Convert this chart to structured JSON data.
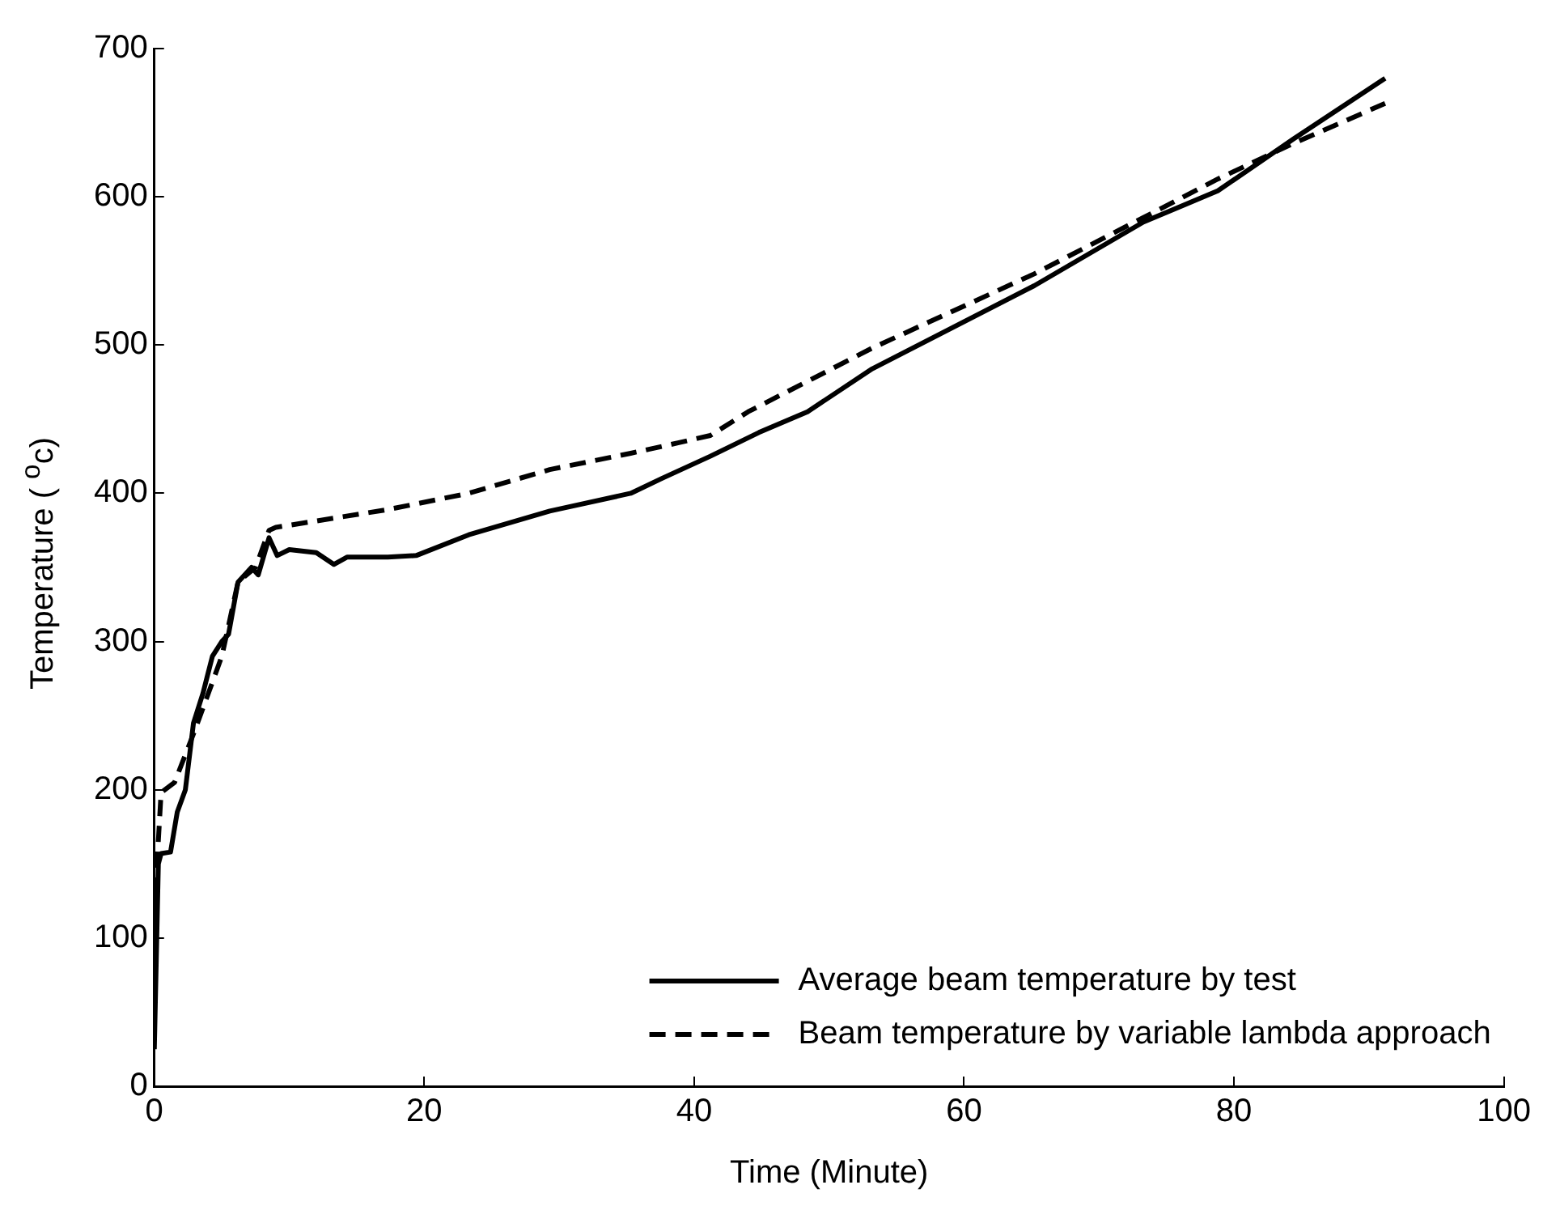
{
  "chart_data": {
    "type": "line",
    "xlabel": "Time (Minute)",
    "ylabel": "Temperature ( $^{o}$c)",
    "xlim": [
      0,
      100
    ],
    "xticks": [
      0,
      20,
      40,
      60,
      80,
      100
    ],
    "ylim": [
      0,
      700
    ],
    "yticks": [
      0,
      100,
      200,
      300,
      400,
      500,
      600,
      700
    ],
    "grid": false,
    "legend": "bottom right",
    "marker": "none",
    "series": [
      {
        "name": "Average beam temperature by test",
        "color": "#000000",
        "line_style": "solid",
        "x": [
          0,
          0.3,
          0.5,
          1.2,
          1.7,
          2.3,
          2.9,
          3.6,
          4.3,
          5,
          5.5,
          6.2,
          7.2,
          7.7,
          8.5,
          9.1,
          10,
          12,
          13.3,
          14.3,
          17.3,
          19.4,
          23.3,
          29.3,
          35.3,
          37.6,
          41.2,
          44.8,
          48.4,
          53.2,
          65.2,
          73.3,
          78.8,
          84.4,
          91.2
        ],
        "values": [
          25,
          150,
          157,
          158,
          185,
          200,
          245,
          265,
          290,
          300,
          305,
          340,
          350,
          345,
          370,
          358,
          362,
          360,
          352,
          357,
          357,
          358,
          372,
          388,
          400,
          410,
          425,
          441,
          455,
          484,
          540,
          583,
          604,
          639,
          680
        ]
      },
      {
        "name": "Beam temperature by variable lambda approach",
        "color": "#000000",
        "line_style": "dashed",
        "x": [
          0,
          0.2,
          0.5,
          1.5,
          3,
          5,
          6.2,
          7.5,
          8.5,
          9,
          17.3,
          23.3,
          29.3,
          35.3,
          38.8,
          41.2,
          44,
          53.2,
          65.2,
          73.3,
          78.8,
          84.4,
          91.2
        ],
        "values": [
          60,
          150,
          198,
          205,
          240,
          290,
          340,
          350,
          375,
          377,
          389,
          400,
          416,
          427,
          434,
          439,
          455,
          498,
          548,
          586,
          612,
          636,
          663
        ]
      }
    ]
  }
}
